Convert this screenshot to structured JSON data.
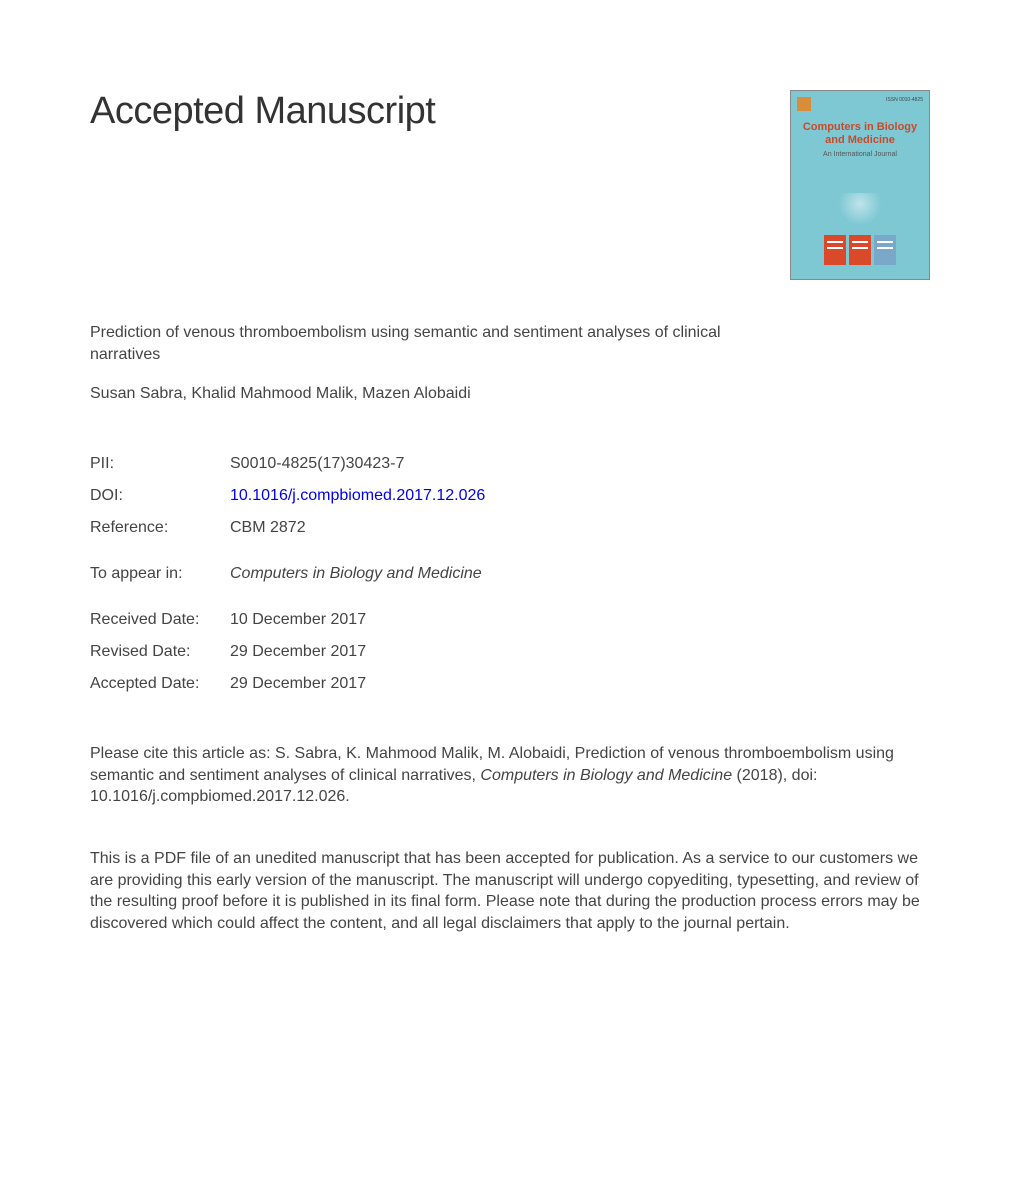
{
  "heading": "Accepted Manuscript",
  "cover": {
    "journal_title": "Computers in Biology and Medicine",
    "subtitle": "An International Journal",
    "issn_label": "ISSN 0010-4825",
    "background_color": "#7ec8d4",
    "title_color": "#c94a2a",
    "block_color_a": "#d9492a",
    "block_color_b": "#7aa8c9"
  },
  "article": {
    "title": "Prediction of venous thromboembolism using semantic and sentiment analyses of clinical narratives",
    "authors": "Susan Sabra, Khalid Mahmood Malik, Mazen Alobaidi"
  },
  "meta": {
    "pii_label": "PII:",
    "pii_value": "S0010-4825(17)30423-7",
    "doi_label": "DOI:",
    "doi_value": "10.1016/j.compbiomed.2017.12.026",
    "ref_label": "Reference:",
    "ref_value": "CBM 2872",
    "appear_label": "To appear in:",
    "appear_value": "Computers in Biology and Medicine",
    "received_label": "Received Date:",
    "received_value": "10 December 2017",
    "revised_label": "Revised Date:",
    "revised_value": "29 December 2017",
    "accepted_label": "Accepted Date:",
    "accepted_value": "29 December 2017"
  },
  "citation": {
    "prefix": "Please cite this article as: S. Sabra, K. Mahmood Malik, M. Alobaidi, Prediction of venous thromboembolism using semantic and sentiment analyses of clinical narratives, ",
    "journal": "Computers in Biology and Medicine",
    "suffix": " (2018), doi: 10.1016/j.compbiomed.2017.12.026."
  },
  "disclaimer": "This is a PDF file of an unedited manuscript that has been accepted for publication. As a service to our customers we are providing this early version of the manuscript. The manuscript will undergo copyediting, typesetting, and review of the resulting proof before it is published in its final form. Please note that during the production process errors may be discovered which could affect the content, and all legal disclaimers that apply to the journal pertain.",
  "colors": {
    "text": "#3a3a3a",
    "link": "#0000ee",
    "background": "#ffffff"
  },
  "typography": {
    "heading_fontsize_pt": 29,
    "body_fontsize_pt": 12,
    "font_family": "Arial"
  }
}
